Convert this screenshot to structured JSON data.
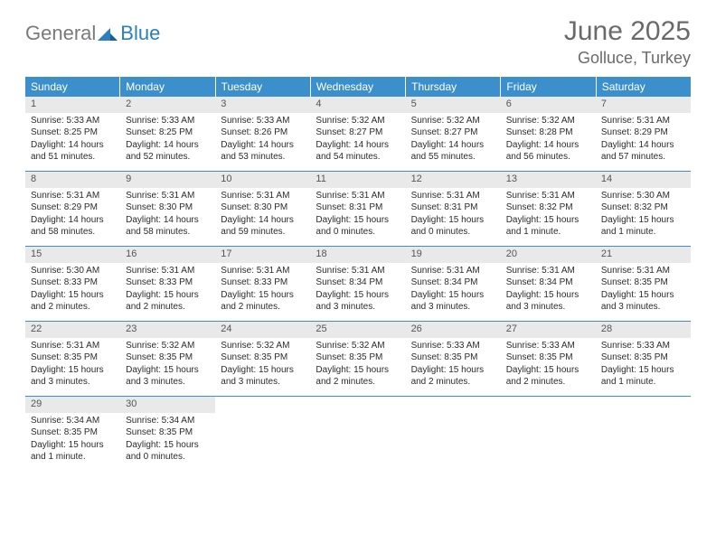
{
  "logo": {
    "general": "General",
    "blue": "Blue",
    "triangle_color": "#2a7fbf"
  },
  "title": {
    "month": "June 2025",
    "location": "Golluce, Turkey"
  },
  "header_bg": "#3b8fca",
  "daynum_bg": "#e9e9e9",
  "text_color": "#2b2b2b",
  "days": [
    "Sunday",
    "Monday",
    "Tuesday",
    "Wednesday",
    "Thursday",
    "Friday",
    "Saturday"
  ],
  "cells": [
    {
      "n": "1",
      "sr": "5:33 AM",
      "ss": "8:25 PM",
      "dl": "14 hours and 51 minutes."
    },
    {
      "n": "2",
      "sr": "5:33 AM",
      "ss": "8:25 PM",
      "dl": "14 hours and 52 minutes."
    },
    {
      "n": "3",
      "sr": "5:33 AM",
      "ss": "8:26 PM",
      "dl": "14 hours and 53 minutes."
    },
    {
      "n": "4",
      "sr": "5:32 AM",
      "ss": "8:27 PM",
      "dl": "14 hours and 54 minutes."
    },
    {
      "n": "5",
      "sr": "5:32 AM",
      "ss": "8:27 PM",
      "dl": "14 hours and 55 minutes."
    },
    {
      "n": "6",
      "sr": "5:32 AM",
      "ss": "8:28 PM",
      "dl": "14 hours and 56 minutes."
    },
    {
      "n": "7",
      "sr": "5:31 AM",
      "ss": "8:29 PM",
      "dl": "14 hours and 57 minutes."
    },
    {
      "n": "8",
      "sr": "5:31 AM",
      "ss": "8:29 PM",
      "dl": "14 hours and 58 minutes."
    },
    {
      "n": "9",
      "sr": "5:31 AM",
      "ss": "8:30 PM",
      "dl": "14 hours and 58 minutes."
    },
    {
      "n": "10",
      "sr": "5:31 AM",
      "ss": "8:30 PM",
      "dl": "14 hours and 59 minutes."
    },
    {
      "n": "11",
      "sr": "5:31 AM",
      "ss": "8:31 PM",
      "dl": "15 hours and 0 minutes."
    },
    {
      "n": "12",
      "sr": "5:31 AM",
      "ss": "8:31 PM",
      "dl": "15 hours and 0 minutes."
    },
    {
      "n": "13",
      "sr": "5:31 AM",
      "ss": "8:32 PM",
      "dl": "15 hours and 1 minute."
    },
    {
      "n": "14",
      "sr": "5:30 AM",
      "ss": "8:32 PM",
      "dl": "15 hours and 1 minute."
    },
    {
      "n": "15",
      "sr": "5:30 AM",
      "ss": "8:33 PM",
      "dl": "15 hours and 2 minutes."
    },
    {
      "n": "16",
      "sr": "5:31 AM",
      "ss": "8:33 PM",
      "dl": "15 hours and 2 minutes."
    },
    {
      "n": "17",
      "sr": "5:31 AM",
      "ss": "8:33 PM",
      "dl": "15 hours and 2 minutes."
    },
    {
      "n": "18",
      "sr": "5:31 AM",
      "ss": "8:34 PM",
      "dl": "15 hours and 3 minutes."
    },
    {
      "n": "19",
      "sr": "5:31 AM",
      "ss": "8:34 PM",
      "dl": "15 hours and 3 minutes."
    },
    {
      "n": "20",
      "sr": "5:31 AM",
      "ss": "8:34 PM",
      "dl": "15 hours and 3 minutes."
    },
    {
      "n": "21",
      "sr": "5:31 AM",
      "ss": "8:35 PM",
      "dl": "15 hours and 3 minutes."
    },
    {
      "n": "22",
      "sr": "5:31 AM",
      "ss": "8:35 PM",
      "dl": "15 hours and 3 minutes."
    },
    {
      "n": "23",
      "sr": "5:32 AM",
      "ss": "8:35 PM",
      "dl": "15 hours and 3 minutes."
    },
    {
      "n": "24",
      "sr": "5:32 AM",
      "ss": "8:35 PM",
      "dl": "15 hours and 3 minutes."
    },
    {
      "n": "25",
      "sr": "5:32 AM",
      "ss": "8:35 PM",
      "dl": "15 hours and 2 minutes."
    },
    {
      "n": "26",
      "sr": "5:33 AM",
      "ss": "8:35 PM",
      "dl": "15 hours and 2 minutes."
    },
    {
      "n": "27",
      "sr": "5:33 AM",
      "ss": "8:35 PM",
      "dl": "15 hours and 2 minutes."
    },
    {
      "n": "28",
      "sr": "5:33 AM",
      "ss": "8:35 PM",
      "dl": "15 hours and 1 minute."
    },
    {
      "n": "29",
      "sr": "5:34 AM",
      "ss": "8:35 PM",
      "dl": "15 hours and 1 minute."
    },
    {
      "n": "30",
      "sr": "5:34 AM",
      "ss": "8:35 PM",
      "dl": "15 hours and 0 minutes."
    }
  ],
  "labels": {
    "sunrise": "Sunrise:",
    "sunset": "Sunset:",
    "daylight": "Daylight:"
  }
}
